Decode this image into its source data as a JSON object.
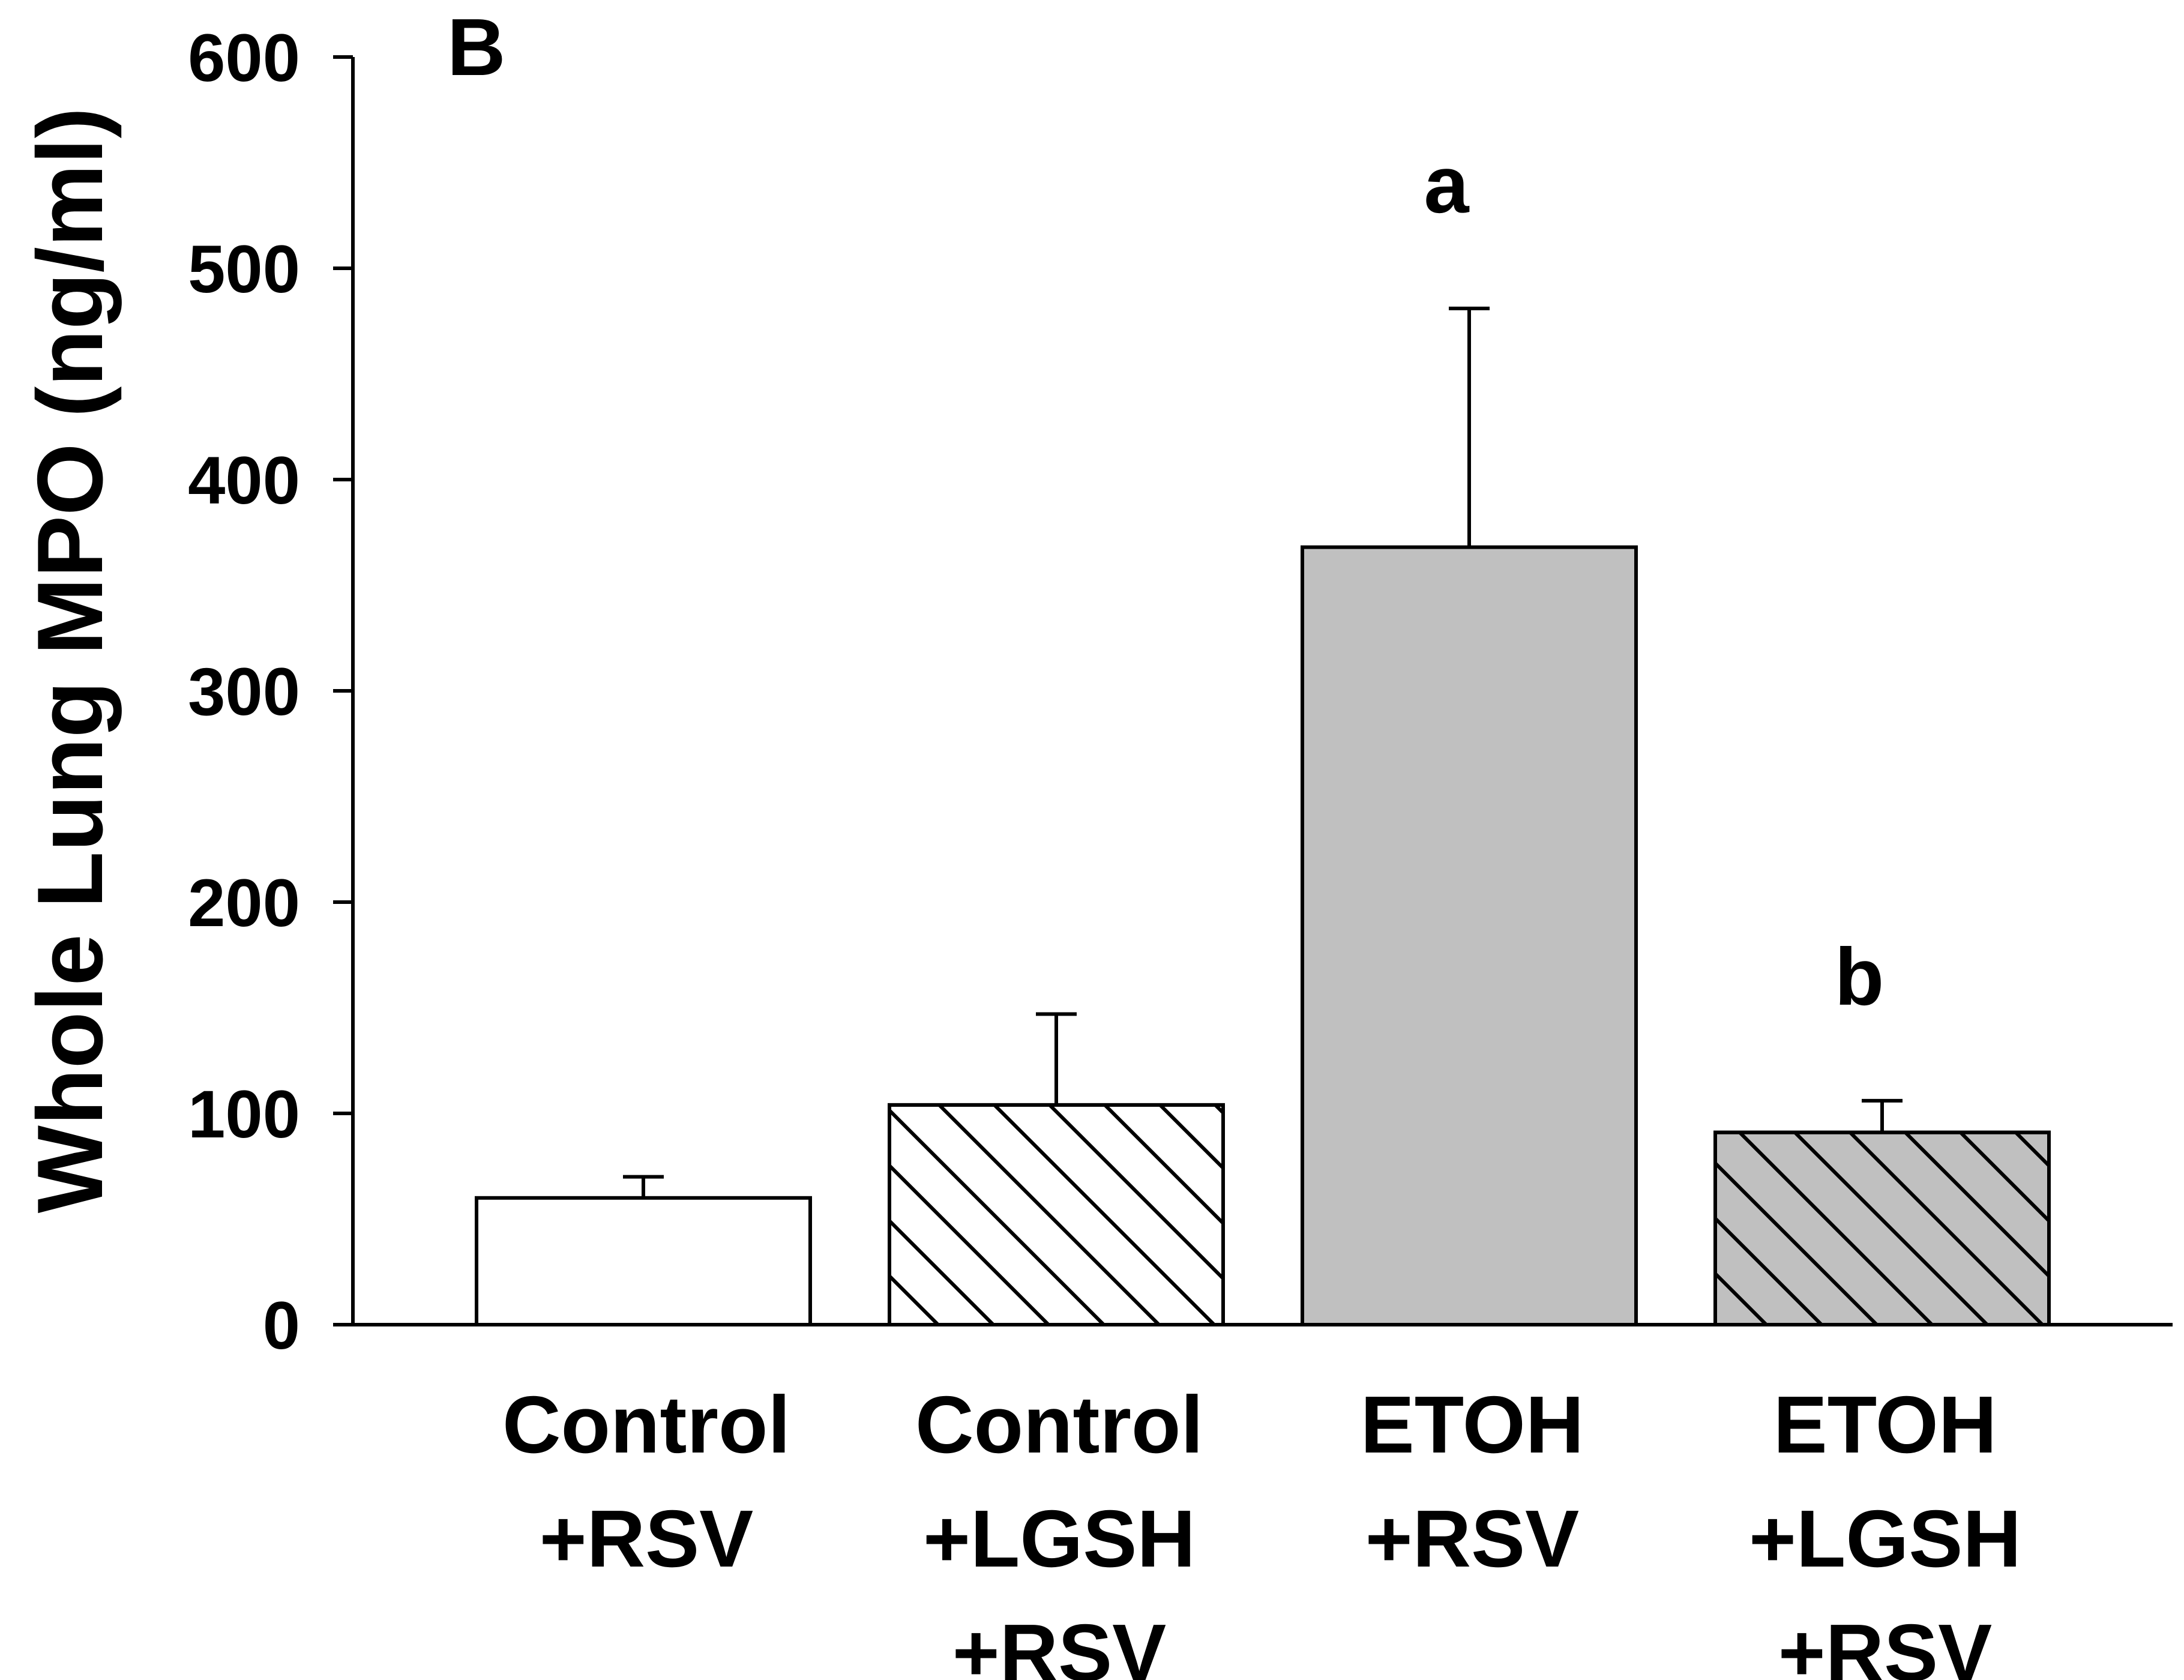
{
  "chart_data": {
    "type": "bar",
    "panel_label": "B",
    "title": "",
    "xlabel": "",
    "ylabel": "Whole Lung MPO (ng/ml)",
    "ylim": [
      0,
      600
    ],
    "yticks": [
      0,
      100,
      200,
      300,
      400,
      500,
      600
    ],
    "categories": [
      {
        "lines": [
          "Control",
          "+RSV"
        ]
      },
      {
        "lines": [
          "Control",
          "+LGSH",
          "+RSV"
        ]
      },
      {
        "lines": [
          "ETOH",
          "+RSV"
        ]
      },
      {
        "lines": [
          "ETOH",
          "+LGSH",
          "+RSV"
        ]
      }
    ],
    "values": [
      60,
      104,
      368,
      91
    ],
    "errors": [
      10,
      43,
      113,
      15
    ],
    "annotations": [
      "",
      "",
      "a",
      "b"
    ],
    "fills": [
      "#ffffff",
      "#ffffff",
      "#c0c0c0",
      "#c0c0c0"
    ],
    "hatched": [
      false,
      true,
      false,
      true
    ]
  }
}
